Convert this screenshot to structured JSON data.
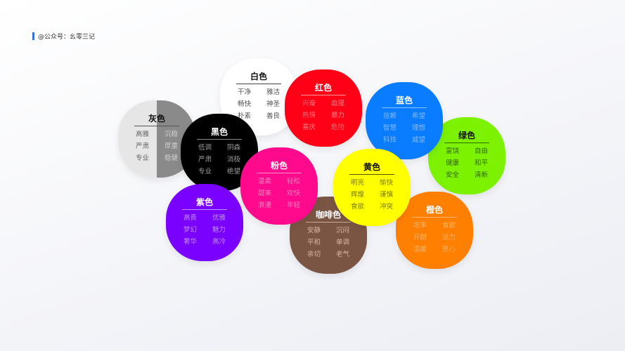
{
  "header": {
    "text": "@公众号：幺零三记",
    "accent": "#3b6fd8"
  },
  "colors": [
    {
      "id": "white",
      "name": "白色",
      "bg": "#ffffff",
      "title_color": "#111111",
      "word_color": "#555555",
      "rule": "#444444",
      "words": [
        "干净",
        "雅洁",
        "畅快",
        "神圣",
        "朴素",
        "善良"
      ]
    },
    {
      "id": "gray",
      "name": "灰色",
      "bg": "split:#e6e6e6/#8a8a8a",
      "title_color": "#111111",
      "word_color": "#666666",
      "word_color_right": "#cfcfcf",
      "rule": "#555555",
      "words": [
        "高雅",
        "沉稳",
        "严肃",
        "厚重",
        "专业",
        "稳健"
      ]
    },
    {
      "id": "red",
      "name": "红色",
      "bg": "#ff0016",
      "title_color": "#ffffff",
      "word_color": "#ff7a80",
      "rule": "#ff9aa0",
      "words": [
        "兴奋",
        "血腥",
        "热情",
        "暴力",
        "喜庆",
        "危险"
      ]
    },
    {
      "id": "green",
      "name": "绿色",
      "bg": "#7cf200",
      "title_color": "#111111",
      "word_color": "#2f6b00",
      "rule": "#2f6b00",
      "words": [
        "富饶",
        "自由",
        "健康",
        "和平",
        "安全",
        "清新"
      ]
    },
    {
      "id": "blue",
      "name": "蓝色",
      "bg": "#0a7cff",
      "title_color": "#ffffff",
      "word_color": "#7fb8ff",
      "rule": "#8cc0ff",
      "words": [
        "信赖",
        "希望",
        "智慧",
        "理想",
        "科技",
        "威望"
      ]
    },
    {
      "id": "black",
      "name": "黑色",
      "bg": "#000000",
      "title_color": "#ffffff",
      "word_color": "#9a9a9a",
      "rule": "#888888",
      "words": [
        "低调",
        "阴森",
        "严肃",
        "消极",
        "专业",
        "绝望"
      ]
    },
    {
      "id": "coffee",
      "name": "咖啡色",
      "bg": "#7b5544",
      "title_color": "#ffffff",
      "word_color": "#d6b3a3",
      "rule": "#c9a898",
      "words": [
        "安静",
        "沉闷",
        "平和",
        "单调",
        "亲切",
        "老气"
      ]
    },
    {
      "id": "orange",
      "name": "橙色",
      "bg": "#ff7f00",
      "title_color": "#ffffff",
      "word_color": "#ffb366",
      "rule": "#ffb366",
      "words": [
        "坦率",
        "食欲",
        "开朗",
        "活力",
        "温暖",
        "热心"
      ]
    },
    {
      "id": "pink",
      "name": "粉色",
      "bg": "#ff0a8c",
      "title_color": "#ffffff",
      "word_color": "#ff80c0",
      "rule": "#ff8fc8",
      "words": [
        "温柔",
        "轻松",
        "甜美",
        "欢快",
        "浪漫",
        "年轻"
      ]
    },
    {
      "id": "yellow",
      "name": "黄色",
      "bg": "#ffff00",
      "title_color": "#111111",
      "word_color": "#7a7a00",
      "rule": "#555500",
      "words": [
        "明亮",
        "愉快",
        "辉煌",
        "谨慎",
        "食欲",
        "冲突"
      ]
    },
    {
      "id": "purple",
      "name": "紫色",
      "bg": "#7a00ff",
      "title_color": "#ffffff",
      "word_color": "#c08cff",
      "rule": "#c08cff",
      "words": [
        "高贵",
        "优雅",
        "梦幻",
        "魅力",
        "奢华",
        "高冷"
      ]
    }
  ]
}
